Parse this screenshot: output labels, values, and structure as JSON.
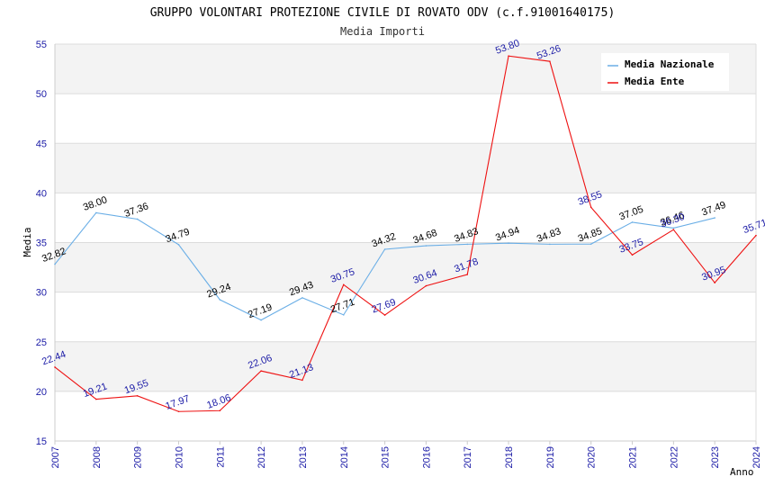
{
  "chart_data": {
    "type": "line",
    "title": "GRUPPO VOLONTARI PROTEZIONE CIVILE DI ROVATO ODV (c.f.91001640175)",
    "subtitle": "Media Importi",
    "xlabel": "Anno",
    "ylabel": "Media",
    "ylim": [
      15,
      55
    ],
    "yticks": [
      "15",
      "20",
      "25",
      "30",
      "35",
      "40",
      "45",
      "50",
      "55"
    ],
    "categories": [
      "2007",
      "2008",
      "2009",
      "2010",
      "2011",
      "2012",
      "2013",
      "2014",
      "2015",
      "2016",
      "2017",
      "2018",
      "2019",
      "2020",
      "2021",
      "2022",
      "2023",
      "2024"
    ],
    "series": [
      {
        "name": "Media Nazionale",
        "color": "#6aaee6",
        "values": [
          32.82,
          38.0,
          37.36,
          34.79,
          29.24,
          27.19,
          29.43,
          27.71,
          34.32,
          34.68,
          34.83,
          34.94,
          34.83,
          34.85,
          37.05,
          36.46,
          37.49,
          null
        ],
        "labels": [
          "32.82",
          "38.00",
          "37.36",
          "34.79",
          "29.24",
          "27.19",
          "29.43",
          "27.71",
          "34.32",
          "34.68",
          "34.83",
          "34.94",
          "34.83",
          "34.85",
          "37.05",
          "36.46",
          "37.49",
          ""
        ]
      },
      {
        "name": "Media Ente",
        "color": "#ee1111",
        "values": [
          22.44,
          19.21,
          19.55,
          17.97,
          18.06,
          22.06,
          21.13,
          30.75,
          27.69,
          30.64,
          31.78,
          53.8,
          53.26,
          38.55,
          33.75,
          36.3,
          30.95,
          35.71
        ],
        "labels": [
          "22.44",
          "19.21",
          "19.55",
          "17.97",
          "18.06",
          "22.06",
          "21.13",
          "30.75",
          "27.69",
          "30.64",
          "31.78",
          "53.80",
          "53.26",
          "38.55",
          "33.75",
          "36.30",
          "30.95",
          "35.71"
        ]
      }
    ],
    "legend": {
      "position": "top-right",
      "entries": [
        "Media Nazionale",
        "Media Ente"
      ]
    },
    "grid": true
  }
}
